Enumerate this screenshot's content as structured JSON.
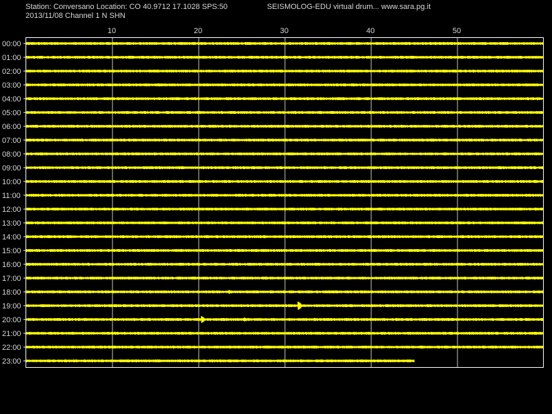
{
  "header": {
    "station_line": "Station: Conversano Location: CO 40.9712 17.1028 SPS:50",
    "program_line": "SEISMOLOG-EDU virtual drum... www.sara.pg.it",
    "date_line": "2013/11/08  Channel 1 N SHN"
  },
  "drum": {
    "minute_ticks": [
      "10",
      "20",
      "30",
      "40",
      "50"
    ],
    "hours": [
      "00:00",
      "01:00",
      "02:00",
      "03:00",
      "04:00",
      "05:00",
      "06:00",
      "07:00",
      "08:00",
      "09:00",
      "10:00",
      "11:00",
      "12:00",
      "13:00",
      "14:00",
      "15:00",
      "16:00",
      "17:00",
      "18:00",
      "19:00",
      "20:00",
      "21:00",
      "22:00",
      "23:00"
    ],
    "last_trace_end_minute": 45,
    "colors": {
      "background": "#000000",
      "trace": "#ffff00",
      "frame": "#ffffff",
      "grid": "#c8c8c8",
      "text": "#d8d8d8"
    }
  }
}
